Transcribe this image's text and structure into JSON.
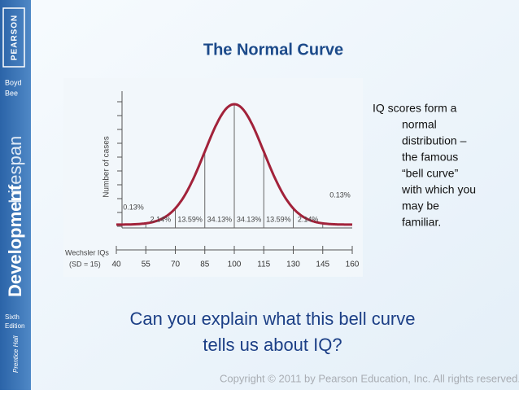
{
  "sidebar": {
    "publisher": "PEARSON",
    "authors": [
      "Boyd",
      "Bee"
    ],
    "book_title": [
      "Lifespan",
      "Development"
    ],
    "edition": [
      "Sixth",
      "Edition"
    ],
    "imprint": "Prentice Hall"
  },
  "title": "The Normal Curve",
  "figure": {
    "y_label": "Number of cases",
    "x_label": "Wechsler IQs",
    "x_note": "(SD = 15)",
    "xticks": [
      40,
      55,
      70,
      85,
      100,
      115,
      130,
      145,
      160
    ],
    "segment_labels": [
      "0.13%",
      "2.14%",
      "13.59%",
      "34.13%",
      "34.13%",
      "13.59%",
      "2.14%",
      "0.13%"
    ]
  },
  "body_lines": [
    "IQ scores form a",
    "normal",
    "distribution –",
    "the famous",
    "“bell curve”",
    "with which you",
    "may be",
    "familiar."
  ],
  "question_lines": [
    "Can you explain what this bell curve",
    "tells us about IQ?"
  ],
  "footer": "Copyright © 2011 by Pearson Education, Inc. All rights reserved."
}
